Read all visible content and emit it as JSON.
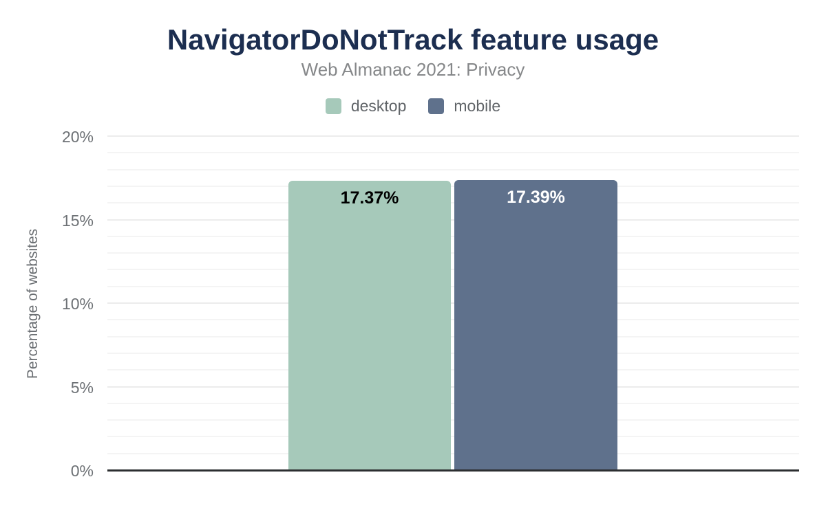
{
  "header": {
    "title": "NavigatorDoNotTrack feature usage",
    "subtitle": "Web Almanac 2021: Privacy"
  },
  "chart_data": {
    "type": "bar",
    "title": "NavigatorDoNotTrack feature usage",
    "subtitle": "Web Almanac 2021: Privacy",
    "categories": [
      "desktop",
      "mobile"
    ],
    "values": [
      17.37,
      17.39
    ],
    "data_labels": [
      "17.37%",
      "17.39%"
    ],
    "bar_colors": [
      "#a6c9ba",
      "#5f718c"
    ],
    "data_label_colors": [
      "#000000",
      "#ffffff"
    ],
    "xlabel": "",
    "ylabel": "Percentage of websites",
    "ylim": [
      0,
      20
    ],
    "yticks": [
      0,
      5,
      10,
      15,
      20
    ],
    "ytick_labels": [
      "0%",
      "5%",
      "10%",
      "15%",
      "20%"
    ],
    "minor_grid_step": 1,
    "major_grid_step": 5,
    "grid": "horizontal",
    "legend_position": "top"
  },
  "colors": {
    "background": "#ffffff",
    "title_text": "#1c2e50",
    "subtitle_text": "#858789",
    "axis_text": "#6d7175",
    "axis_line": "#2c2e30",
    "grid_minor": "#f4f4f4",
    "grid_major": "#ececec"
  }
}
